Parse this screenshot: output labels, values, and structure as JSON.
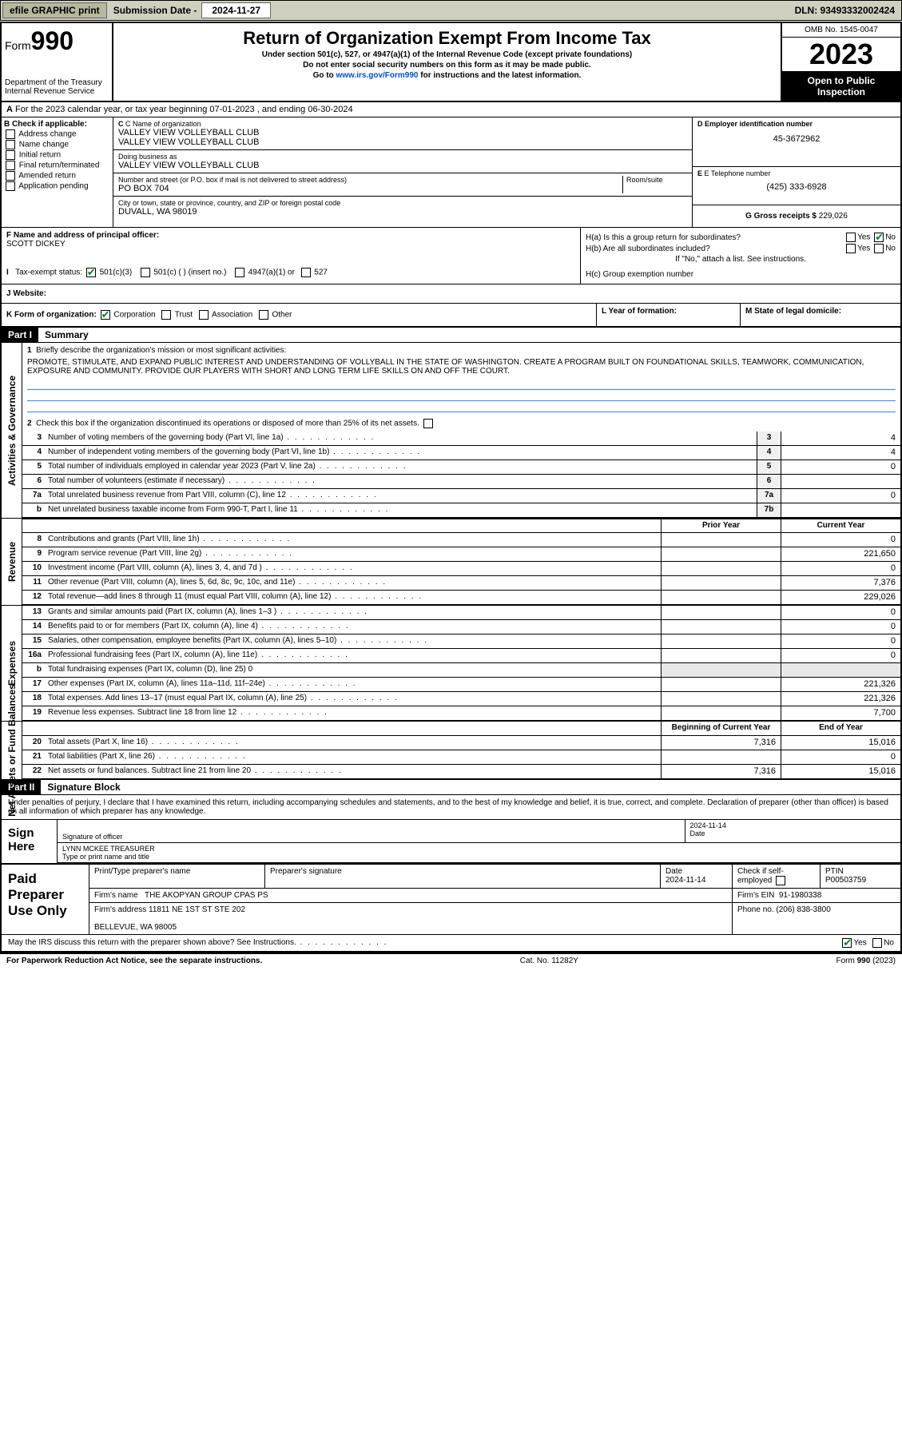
{
  "topbar": {
    "efile": "efile GRAPHIC print",
    "submission_label": "Submission Date - ",
    "submission_date": "2024-11-27",
    "dln": "DLN: 93493332002424"
  },
  "header": {
    "form_label": "Form",
    "form_num": "990",
    "dept": "Department of the Treasury\nInternal Revenue Service",
    "title": "Return of Organization Exempt From Income Tax",
    "sub1": "Under section 501(c), 527, or 4947(a)(1) of the Internal Revenue Code (except private foundations)",
    "sub2": "Do not enter social security numbers on this form as it may be made public.",
    "sub3": "Go to www.irs.gov/Form990 for instructions and the latest information.",
    "omb": "OMB No. 1545-0047",
    "year": "2023",
    "open": "Open to Public Inspection"
  },
  "row_a": "For the 2023 calendar year, or tax year beginning 07-01-2023   , and ending 06-30-2024",
  "col_b": {
    "title": "B Check if applicable:",
    "items": [
      "Address change",
      "Name change",
      "Initial return",
      "Final return/terminated",
      "Amended return",
      "Application pending"
    ]
  },
  "col_c": {
    "name_label": "C Name of organization",
    "name1": "VALLEY VIEW VOLLEYBALL CLUB",
    "name2": "VALLEY VIEW VOLLEYBALL CLUB",
    "dba_label": "Doing business as",
    "dba": "VALLEY VIEW VOLLEYBALL CLUB",
    "street_label": "Number and street (or P.O. box if mail is not delivered to street address)",
    "room_label": "Room/suite",
    "street": "PO BOX 704",
    "city_label": "City or town, state or province, country, and ZIP or foreign postal code",
    "city": "DUVALL, WA  98019"
  },
  "col_d": {
    "label": "D Employer identification number",
    "val": "45-3672962"
  },
  "col_e": {
    "label": "E Telephone number",
    "val": "(425) 333-6928"
  },
  "col_g": {
    "label": "G Gross receipts $",
    "val": "229,026"
  },
  "col_f": {
    "label": "F Name and address of principal officer:",
    "val": "SCOTT DICKEY"
  },
  "col_h": {
    "ha": "H(a)  Is this a group return for subordinates?",
    "hb": "H(b)  Are all subordinates included?",
    "hb_note": "If \"No,\" attach a list. See instructions.",
    "hc": "H(c)  Group exemption number"
  },
  "row_i": {
    "label": "Tax-exempt status:",
    "opts": [
      "501(c)(3)",
      "501(c) (  ) (insert no.)",
      "4947(a)(1) or",
      "527"
    ]
  },
  "row_j": {
    "label": "J   Website:"
  },
  "row_k": {
    "label": "K Form of organization:",
    "opts": [
      "Corporation",
      "Trust",
      "Association",
      "Other"
    ]
  },
  "row_l": "L Year of formation:",
  "row_m": "M State of legal domicile:",
  "part1": {
    "hdr": "Part I",
    "title": "Summary",
    "l1": "Briefly describe the organization's mission or most significant activities:",
    "mission": "PROMOTE, STIMULATE, AND EXPAND PUBLIC INTEREST AND UNDERSTANDING OF VOLLYBALL IN THE STATE OF WASHINGTON. CREATE A PROGRAM BUILT ON FOUNDATIONAL SKILLS, TEAMWORK, COMMUNICATION, EXPOSURE AND COMMUNITY. PROVIDE OUR PLAYERS WITH SHORT AND LONG TERM LIFE SKILLS ON AND OFF THE COURT.",
    "l2": "Check this box      if the organization discontinued its operations or disposed of more than 25% of its net assets."
  },
  "sidebar": {
    "s1": "Activities & Governance",
    "s2": "Revenue",
    "s3": "Expenses",
    "s4": "Net Assets or Fund Balances"
  },
  "gov_lines": [
    {
      "n": "3",
      "t": "Number of voting members of the governing body (Part VI, line 1a)",
      "b": "3",
      "v": "4"
    },
    {
      "n": "4",
      "t": "Number of independent voting members of the governing body (Part VI, line 1b)",
      "b": "4",
      "v": "4"
    },
    {
      "n": "5",
      "t": "Total number of individuals employed in calendar year 2023 (Part V, line 2a)",
      "b": "5",
      "v": "0"
    },
    {
      "n": "6",
      "t": "Total number of volunteers (estimate if necessary)",
      "b": "6",
      "v": ""
    },
    {
      "n": "7a",
      "t": "Total unrelated business revenue from Part VIII, column (C), line 12",
      "b": "7a",
      "v": "0"
    },
    {
      "n": "b",
      "t": "Net unrelated business taxable income from Form 990-T, Part I, line 11",
      "b": "7b",
      "v": ""
    }
  ],
  "rev_hdr": {
    "prior": "Prior Year",
    "current": "Current Year"
  },
  "rev_lines": [
    {
      "n": "8",
      "t": "Contributions and grants (Part VIII, line 1h)",
      "p": "",
      "c": "0"
    },
    {
      "n": "9",
      "t": "Program service revenue (Part VIII, line 2g)",
      "p": "",
      "c": "221,650"
    },
    {
      "n": "10",
      "t": "Investment income (Part VIII, column (A), lines 3, 4, and 7d )",
      "p": "",
      "c": "0"
    },
    {
      "n": "11",
      "t": "Other revenue (Part VIII, column (A), lines 5, 6d, 8c, 9c, 10c, and 11e)",
      "p": "",
      "c": "7,376"
    },
    {
      "n": "12",
      "t": "Total revenue—add lines 8 through 11 (must equal Part VIII, column (A), line 12)",
      "p": "",
      "c": "229,026"
    }
  ],
  "exp_lines": [
    {
      "n": "13",
      "t": "Grants and similar amounts paid (Part IX, column (A), lines 1–3 )",
      "p": "",
      "c": "0"
    },
    {
      "n": "14",
      "t": "Benefits paid to or for members (Part IX, column (A), line 4)",
      "p": "",
      "c": "0"
    },
    {
      "n": "15",
      "t": "Salaries, other compensation, employee benefits (Part IX, column (A), lines 5–10)",
      "p": "",
      "c": "0"
    },
    {
      "n": "16a",
      "t": "Professional fundraising fees (Part IX, column (A), line 11e)",
      "p": "",
      "c": "0"
    },
    {
      "n": "b",
      "t": "Total fundraising expenses (Part IX, column (D), line 25) 0",
      "nb": true
    },
    {
      "n": "17",
      "t": "Other expenses (Part IX, column (A), lines 11a–11d, 11f–24e)",
      "p": "",
      "c": "221,326"
    },
    {
      "n": "18",
      "t": "Total expenses. Add lines 13–17 (must equal Part IX, column (A), line 25)",
      "p": "",
      "c": "221,326"
    },
    {
      "n": "19",
      "t": "Revenue less expenses. Subtract line 18 from line 12",
      "p": "",
      "c": "7,700"
    }
  ],
  "na_hdr": {
    "begin": "Beginning of Current Year",
    "end": "End of Year"
  },
  "na_lines": [
    {
      "n": "20",
      "t": "Total assets (Part X, line 16)",
      "p": "7,316",
      "c": "15,016"
    },
    {
      "n": "21",
      "t": "Total liabilities (Part X, line 26)",
      "p": "",
      "c": "0"
    },
    {
      "n": "22",
      "t": "Net assets or fund balances. Subtract line 21 from line 20",
      "p": "7,316",
      "c": "15,016"
    }
  ],
  "part2": {
    "hdr": "Part II",
    "title": "Signature Block"
  },
  "perjury": "Under penalties of perjury, I declare that I have examined this return, including accompanying schedules and statements, and to the best of my knowledge and belief, it is true, correct, and complete. Declaration of preparer (other than officer) is based on all information of which preparer has any knowledge.",
  "sign": {
    "here": "Sign Here",
    "sig_label": "Signature of officer",
    "name": "LYNN MCKEE  TREASURER",
    "name_label": "Type or print name and title",
    "date_label": "Date",
    "date": "2024-11-14"
  },
  "prep": {
    "label": "Paid Preparer Use Only",
    "h_name": "Print/Type preparer's name",
    "h_sig": "Preparer's signature",
    "h_date": "Date",
    "date": "2024-11-14",
    "h_check": "Check        if self-employed",
    "h_ptin": "PTIN",
    "ptin": "P00503759",
    "firm_name_label": "Firm's name",
    "firm_name": "THE AKOPYAN GROUP CPAS PS",
    "firm_ein_label": "Firm's EIN",
    "firm_ein": "91-1980338",
    "firm_addr_label": "Firm's address",
    "firm_addr1": "11811 NE 1ST ST STE 202",
    "firm_addr2": "BELLEVUE, WA  98005",
    "phone_label": "Phone no.",
    "phone": "(206) 838-3800"
  },
  "discuss": "May the IRS discuss this return with the preparer shown above? See Instructions.",
  "footer": {
    "l": "For Paperwork Reduction Act Notice, see the separate instructions.",
    "m": "Cat. No. 11282Y",
    "r": "Form 990 (2023)"
  },
  "yes": "Yes",
  "no": "No"
}
